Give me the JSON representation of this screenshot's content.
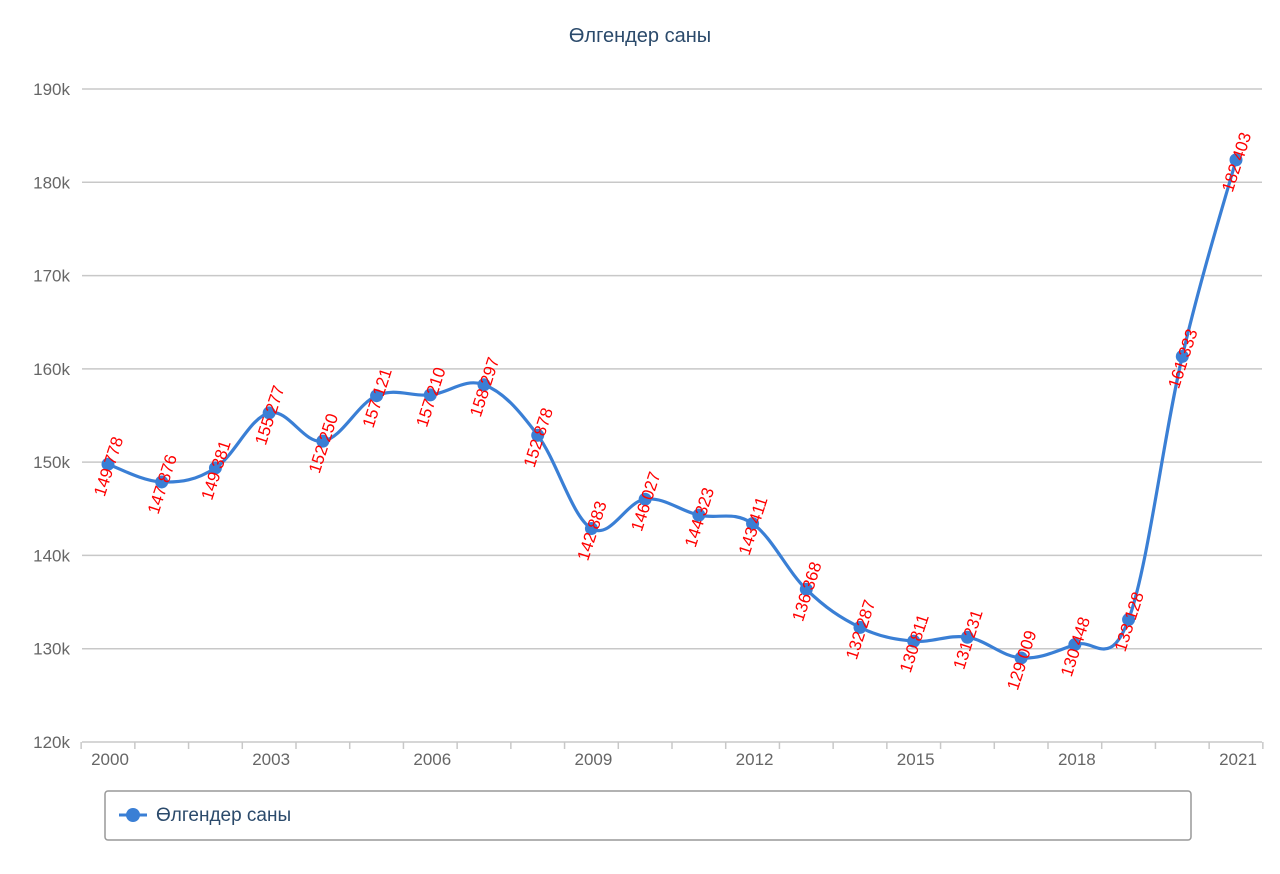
{
  "chart_data": {
    "type": "line",
    "title": "Өлгендер саны",
    "x": [
      2000,
      2001,
      2002,
      2003,
      2004,
      2005,
      2006,
      2007,
      2008,
      2009,
      2010,
      2011,
      2012,
      2013,
      2014,
      2015,
      2016,
      2017,
      2018,
      2019,
      2020,
      2021
    ],
    "x_tick_labels": [
      "2000",
      "2003",
      "2006",
      "2009",
      "2012",
      "2015",
      "2018",
      "2021"
    ],
    "series": [
      {
        "name": "Өлгендер саны",
        "color": "#3a7fd5",
        "values": [
          149778,
          147876,
          149381,
          155277,
          152250,
          157121,
          157210,
          158297,
          152878,
          142883,
          146027,
          144323,
          143411,
          136368,
          132287,
          130811,
          131231,
          129009,
          130448,
          133128,
          161333,
          182403
        ],
        "data_labels": [
          "149 778",
          "147 876",
          "149 381",
          "155 277",
          "152 250",
          "157 121",
          "157 210",
          "158 297",
          "152 878",
          "142 883",
          "146 027",
          "144 323",
          "143 411",
          "136 368",
          "132 287",
          "130 811",
          "131 231",
          "129 009",
          "130 448",
          "133 128",
          "161 333",
          "182 403"
        ]
      }
    ],
    "ylim": [
      120000,
      190000
    ],
    "y_tick_labels": [
      "120k",
      "130k",
      "140k",
      "150k",
      "160k",
      "170k",
      "180k",
      "190k"
    ],
    "y_tick_values": [
      120000,
      130000,
      140000,
      150000,
      160000,
      170000,
      180000,
      190000
    ],
    "grid": "horizontal",
    "legend_position": "bottom",
    "label_color": "#ff0000",
    "grid_color": "#c8c8c8"
  }
}
